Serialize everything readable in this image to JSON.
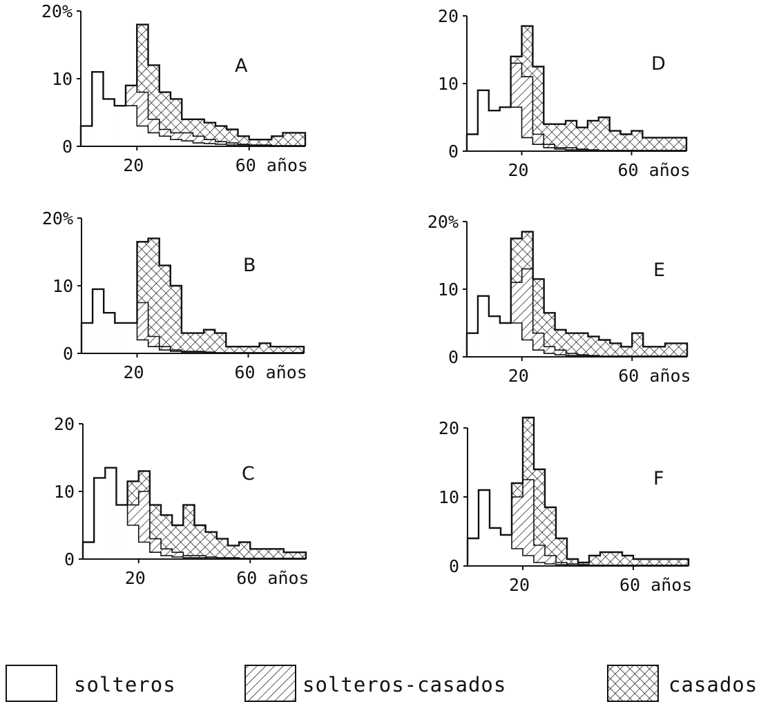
{
  "figure": {
    "x_unit_label": "años",
    "legend": [
      {
        "key": "s",
        "label": "solteros",
        "pattern": "none"
      },
      {
        "key": "sc",
        "label": "solteros-casados",
        "pattern": "diagonal-hatch"
      },
      {
        "key": "c",
        "label": "casados",
        "pattern": "cross-hatch"
      }
    ],
    "colors": {
      "ink": "#111111",
      "paper": "#ffffff"
    }
  },
  "chart_data": [
    {
      "type": "bar",
      "panel": "A",
      "y_tick_labels": [
        "20%",
        "10",
        "0"
      ],
      "x_tick_labels": [
        "20",
        "60 años"
      ],
      "x_ticks": [
        20,
        60
      ],
      "y_ticks": [
        20,
        10,
        0
      ],
      "xlim": [
        0,
        80
      ],
      "ylim": [
        0,
        20
      ],
      "bin_width": 4,
      "series": [
        {
          "key": "s",
          "values": [
            3,
            11,
            7,
            6,
            6,
            3,
            2,
            1.5,
            1,
            0.8,
            0.5,
            0.4,
            0.3,
            0.2,
            0.2,
            0.1,
            0.1,
            0.1,
            0.1,
            0.1
          ]
        },
        {
          "key": "sc",
          "values": [
            3,
            11,
            7,
            6,
            9,
            8,
            4,
            2.5,
            2,
            2,
            1.5,
            1,
            0.7,
            0.5,
            0.3,
            0.2,
            0.2,
            0.1,
            0.1,
            0.1
          ]
        },
        {
          "key": "c",
          "values": [
            3,
            11,
            7,
            6,
            9,
            18,
            12,
            8,
            7,
            4,
            4,
            3.5,
            3,
            2.5,
            1.5,
            1,
            1,
            1.5,
            2,
            2
          ]
        }
      ]
    },
    {
      "type": "bar",
      "panel": "B",
      "y_tick_labels": [
        "20%",
        "10",
        "0"
      ],
      "x_tick_labels": [
        "20",
        "60 años"
      ],
      "x_ticks": [
        20,
        60
      ],
      "y_ticks": [
        20,
        10,
        0
      ],
      "xlim": [
        0,
        80
      ],
      "ylim": [
        0,
        20
      ],
      "bin_width": 4,
      "series": [
        {
          "key": "s",
          "values": [
            4.5,
            9.5,
            6,
            4.5,
            4.5,
            2,
            1,
            0.5,
            0.3,
            0.2,
            0.2,
            0.1,
            0.1,
            0.1,
            0.1,
            0.1,
            0.1,
            0.1,
            0.1,
            0.1
          ]
        },
        {
          "key": "sc",
          "values": [
            4.5,
            9.5,
            6,
            4.5,
            4.5,
            7.5,
            2.5,
            1,
            0.5,
            0.3,
            0.3,
            0.2,
            0.1,
            0.1,
            0.1,
            0.1,
            0.1,
            0.1,
            0.1,
            0.1
          ]
        },
        {
          "key": "c",
          "values": [
            4.5,
            9.5,
            6,
            4.5,
            4.5,
            16.5,
            17,
            13,
            10,
            3,
            3,
            3.5,
            3,
            1,
            1,
            1,
            1.5,
            1,
            1,
            1
          ]
        }
      ]
    },
    {
      "type": "bar",
      "panel": "C",
      "y_tick_labels": [
        "20",
        "10",
        "0"
      ],
      "x_tick_labels": [
        "20",
        "60 años"
      ],
      "x_ticks": [
        20,
        60
      ],
      "y_ticks": [
        20,
        10,
        0
      ],
      "xlim": [
        0,
        80
      ],
      "ylim": [
        0,
        20
      ],
      "bin_width": 4,
      "series": [
        {
          "key": "s",
          "values": [
            2.5,
            12,
            13.5,
            8,
            5,
            2.5,
            1,
            0.5,
            0.3,
            0.2,
            0.2,
            0.1,
            0.1,
            0.1,
            0.1,
            0.1,
            0.1,
            0.1,
            0.1,
            0.1
          ]
        },
        {
          "key": "sc",
          "values": [
            2.5,
            12,
            13.5,
            8,
            8,
            10,
            3,
            1.5,
            1,
            0.5,
            0.5,
            0.3,
            0.2,
            0.2,
            0.1,
            0.1,
            0.1,
            0.1,
            0.1,
            0.1
          ]
        },
        {
          "key": "c",
          "values": [
            2.5,
            12,
            13.5,
            8,
            11.5,
            13,
            8,
            6.5,
            5,
            8,
            5,
            4,
            3,
            2,
            2.5,
            1.5,
            1.5,
            1.5,
            1,
            1
          ]
        }
      ]
    },
    {
      "type": "bar",
      "panel": "D",
      "y_tick_labels": [
        "20",
        "10",
        "0"
      ],
      "x_tick_labels": [
        "20",
        "60 años"
      ],
      "x_ticks": [
        20,
        60
      ],
      "y_ticks": [
        20,
        10,
        0
      ],
      "xlim": [
        0,
        80
      ],
      "ylim": [
        0,
        20
      ],
      "bin_width": 4,
      "series": [
        {
          "key": "s",
          "values": [
            2.5,
            9,
            6,
            6.5,
            6.5,
            2,
            1,
            0.5,
            0.3,
            0.2,
            0.2,
            0.1,
            0.1,
            0.1,
            0.1,
            0.1,
            0.1,
            0.1,
            0.1,
            0.1
          ]
        },
        {
          "key": "sc",
          "values": [
            2.5,
            9,
            6,
            6.5,
            13,
            11,
            2.5,
            1,
            0.5,
            0.5,
            0.3,
            0.2,
            0.1,
            0.1,
            0.1,
            0.1,
            0.1,
            0.1,
            0.1,
            0.1
          ]
        },
        {
          "key": "c",
          "values": [
            2.5,
            9,
            6,
            6.5,
            14,
            18.5,
            12.5,
            4,
            4,
            4.5,
            3.5,
            4.5,
            5,
            3,
            2.5,
            3,
            2,
            2,
            2,
            2
          ]
        }
      ]
    },
    {
      "type": "bar",
      "panel": "E",
      "y_tick_labels": [
        "20%",
        "10",
        "0"
      ],
      "x_tick_labels": [
        "20",
        "60 años"
      ],
      "x_ticks": [
        20,
        60
      ],
      "y_ticks": [
        20,
        10,
        0
      ],
      "xlim": [
        0,
        80
      ],
      "ylim": [
        0,
        20
      ],
      "bin_width": 4,
      "series": [
        {
          "key": "s",
          "values": [
            3.5,
            9,
            6,
            5,
            5,
            2.5,
            1,
            0.5,
            0.3,
            0.2,
            0.2,
            0.1,
            0.1,
            0.1,
            0.1,
            0.1,
            0.1,
            0.1,
            0.1,
            0.1
          ]
        },
        {
          "key": "sc",
          "values": [
            3.5,
            9,
            6,
            5,
            11,
            13,
            3.5,
            1.5,
            1,
            0.5,
            0.3,
            0.2,
            0.1,
            0.1,
            0.1,
            0.1,
            0.1,
            0.1,
            0.1,
            0.1
          ]
        },
        {
          "key": "c",
          "values": [
            3.5,
            9,
            6,
            5,
            17.5,
            18.5,
            11.5,
            6.5,
            4,
            3.5,
            3.5,
            3,
            2.5,
            2,
            1.5,
            3.5,
            1.5,
            1.5,
            2,
            2
          ]
        }
      ]
    },
    {
      "type": "bar",
      "panel": "F",
      "y_tick_labels": [
        "20",
        "10",
        "0"
      ],
      "x_tick_labels": [
        "20",
        "60 años"
      ],
      "x_ticks": [
        20,
        60
      ],
      "y_ticks": [
        20,
        10,
        0
      ],
      "xlim": [
        0,
        80
      ],
      "ylim": [
        0,
        20
      ],
      "bin_width": 4,
      "series": [
        {
          "key": "s",
          "values": [
            4,
            11,
            5.5,
            4.5,
            2.5,
            1.5,
            0.5,
            0.3,
            0.2,
            0.1,
            0.1,
            0.1,
            0.1,
            0.1,
            0.1,
            0.1,
            0.1,
            0.1,
            0.1,
            0.1
          ]
        },
        {
          "key": "sc",
          "values": [
            4,
            11,
            5.5,
            4.5,
            10,
            12.5,
            3,
            1.5,
            0.5,
            0.3,
            0.2,
            0.1,
            0.1,
            0.1,
            0.1,
            0.1,
            0.1,
            0.1,
            0.1,
            0.1
          ]
        },
        {
          "key": "c",
          "values": [
            4,
            11,
            5.5,
            4.5,
            12,
            21.5,
            14,
            8.5,
            4,
            1,
            0.5,
            1.5,
            2,
            2,
            1.5,
            1,
            1,
            1,
            1,
            1
          ]
        }
      ]
    }
  ]
}
